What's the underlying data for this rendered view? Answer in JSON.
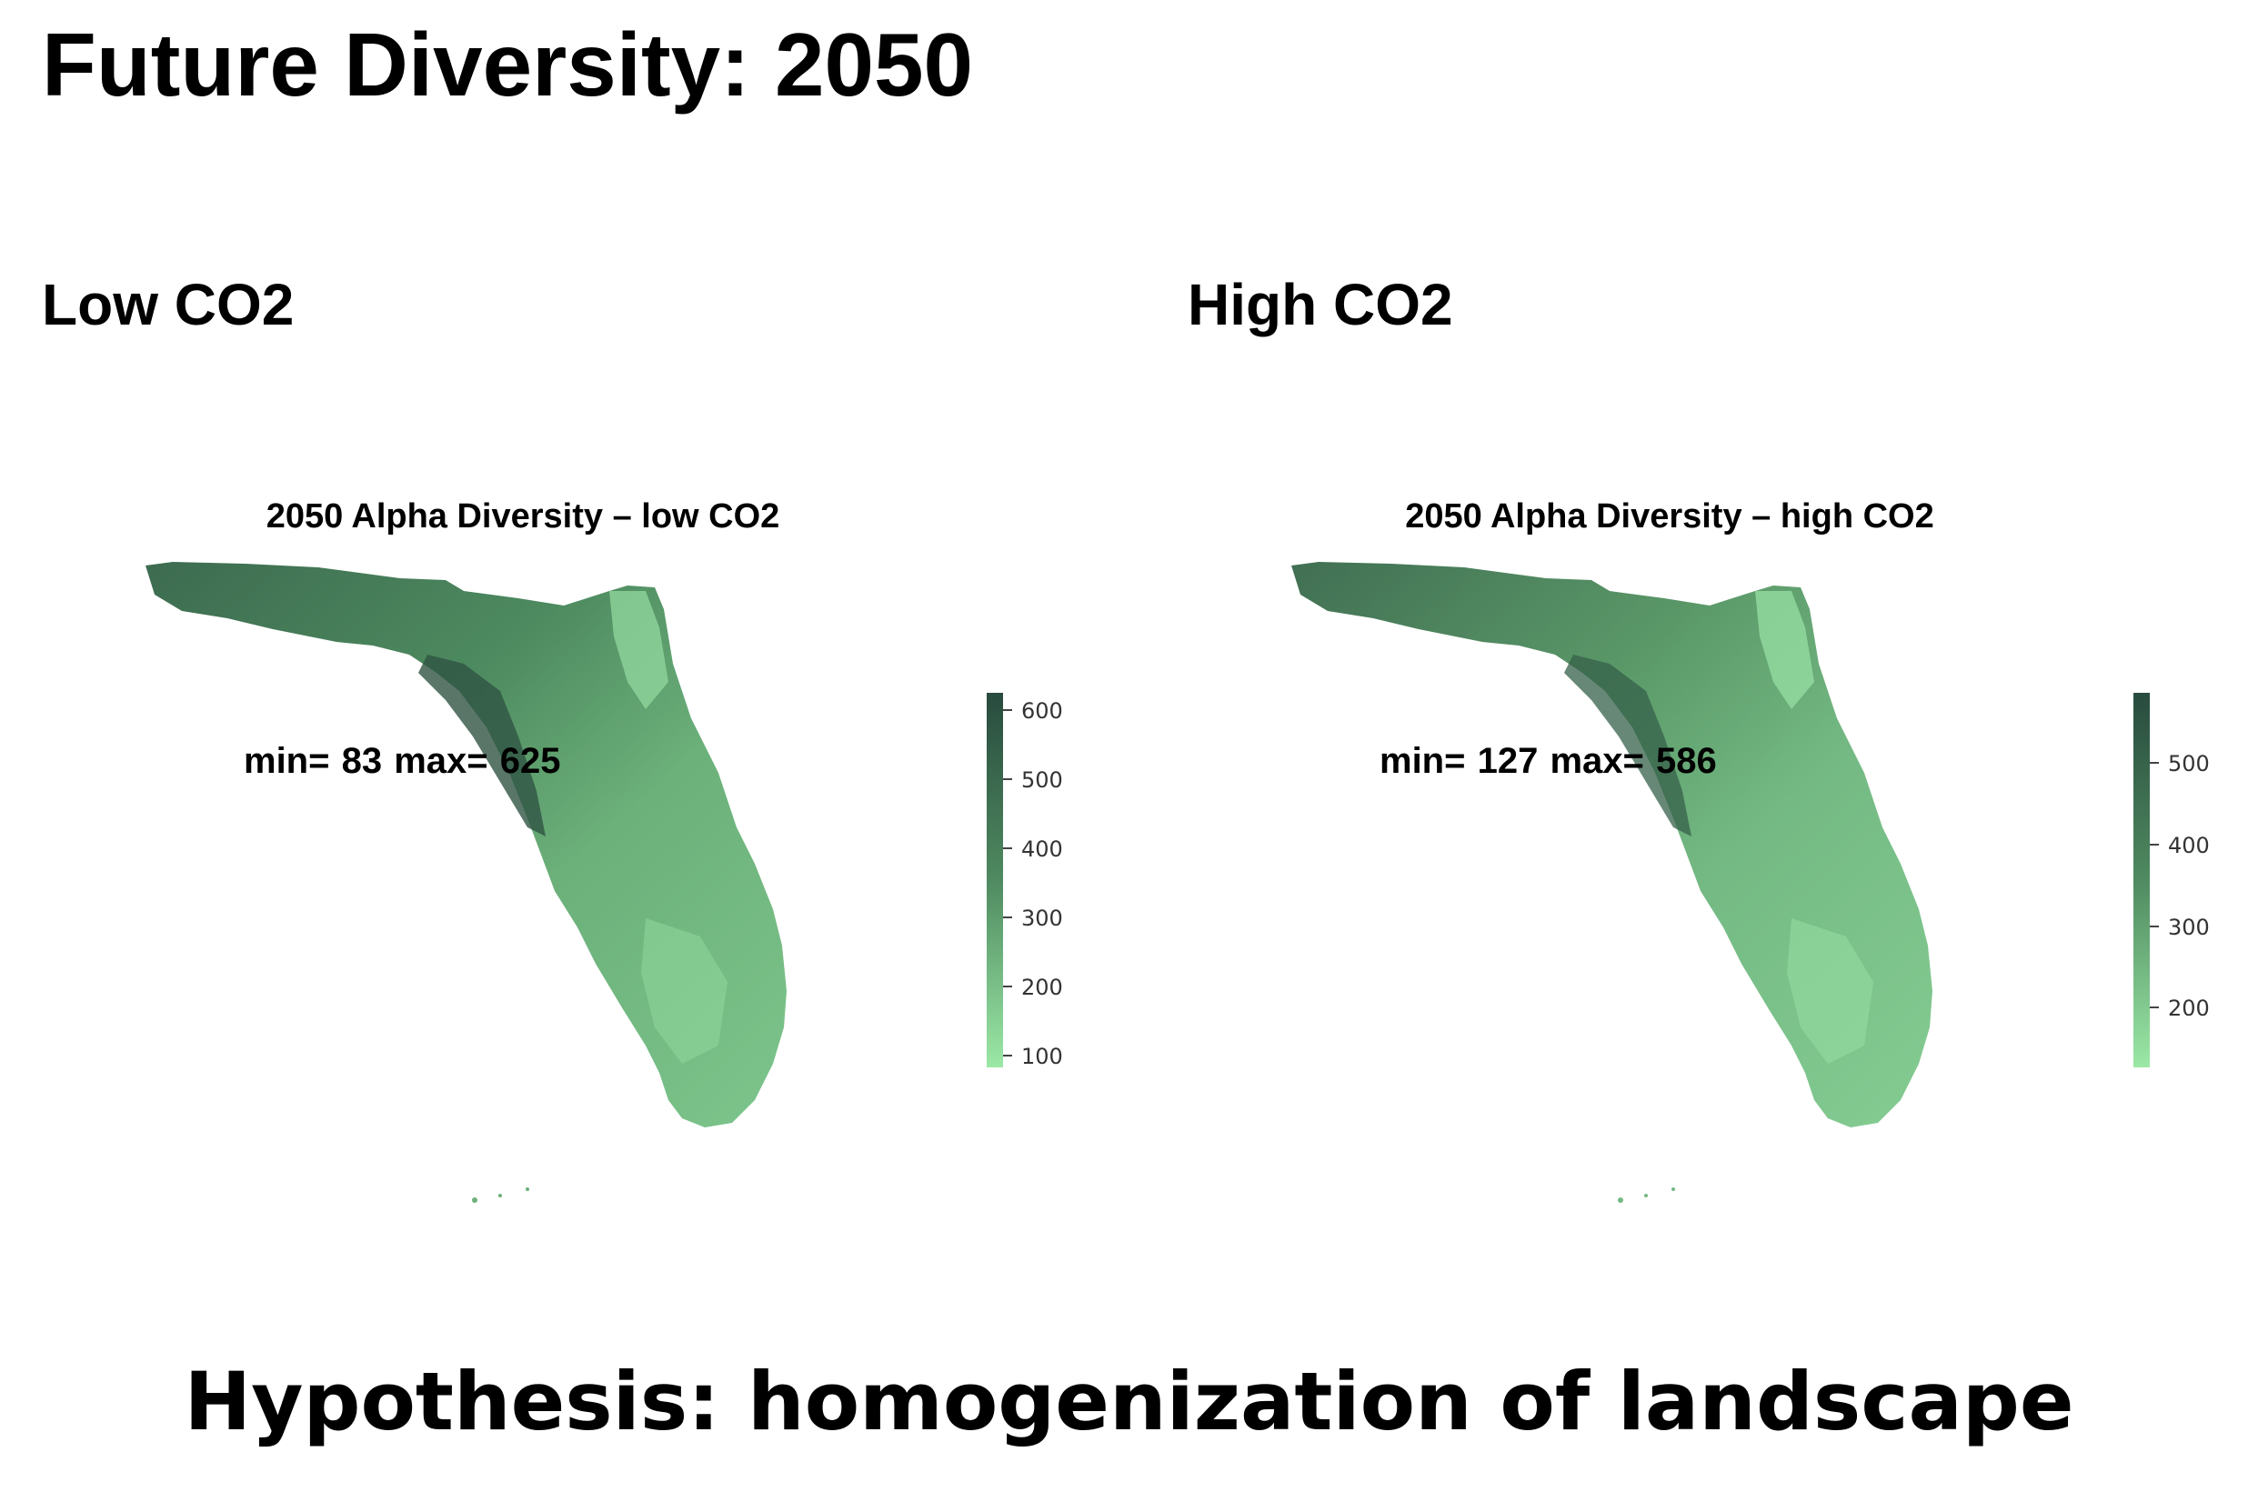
{
  "title": "Future Diversity: 2050",
  "panels": [
    {
      "heading": "Low CO2",
      "map_title": "2050 Alpha Diversity – low CO2",
      "minmax_text": "min= 83  max= 625",
      "legend": {
        "min": 83,
        "max": 625,
        "ticks": [
          100,
          200,
          300,
          400,
          500,
          600
        ]
      }
    },
    {
      "heading": "High CO2",
      "map_title": "2050 Alpha Diversity – high CO2",
      "minmax_text": "min= 127  max= 586",
      "legend": {
        "min": 127,
        "max": 586,
        "ticks": [
          200,
          300,
          400,
          500
        ]
      }
    }
  ],
  "hypothesis": "Hypothesis: homogenization of landscape",
  "colors": {
    "low": "#9be8a6",
    "mid": "#4f8a60",
    "high": "#284b3e"
  }
}
